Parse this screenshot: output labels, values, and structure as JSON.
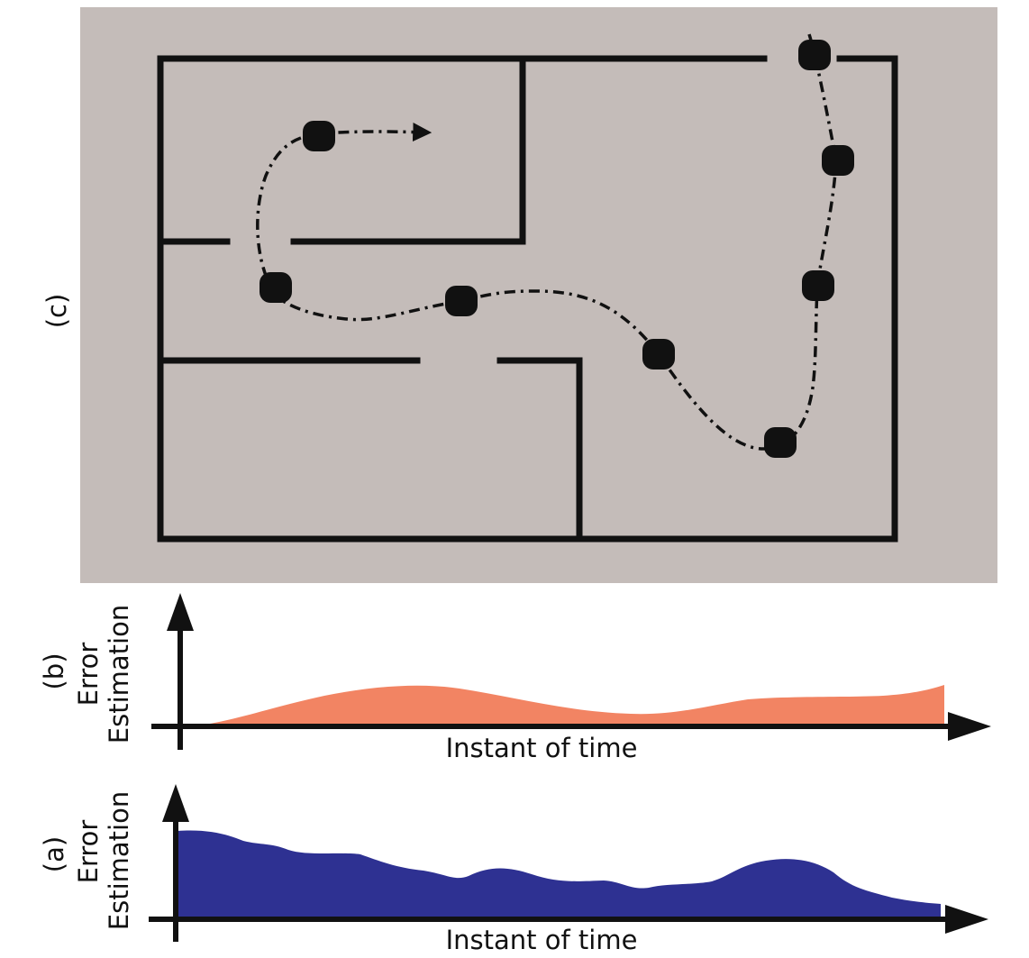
{
  "panels": [
    {
      "label": "(c)"
    },
    {
      "label": "(b)",
      "y_axis_label": [
        "Error",
        "Estimation"
      ],
      "x_axis_label": "Instant of time"
    },
    {
      "label": "(a)",
      "y_axis_label": [
        "Error",
        "Estimation"
      ],
      "x_axis_label": "Instant of time"
    }
  ]
}
